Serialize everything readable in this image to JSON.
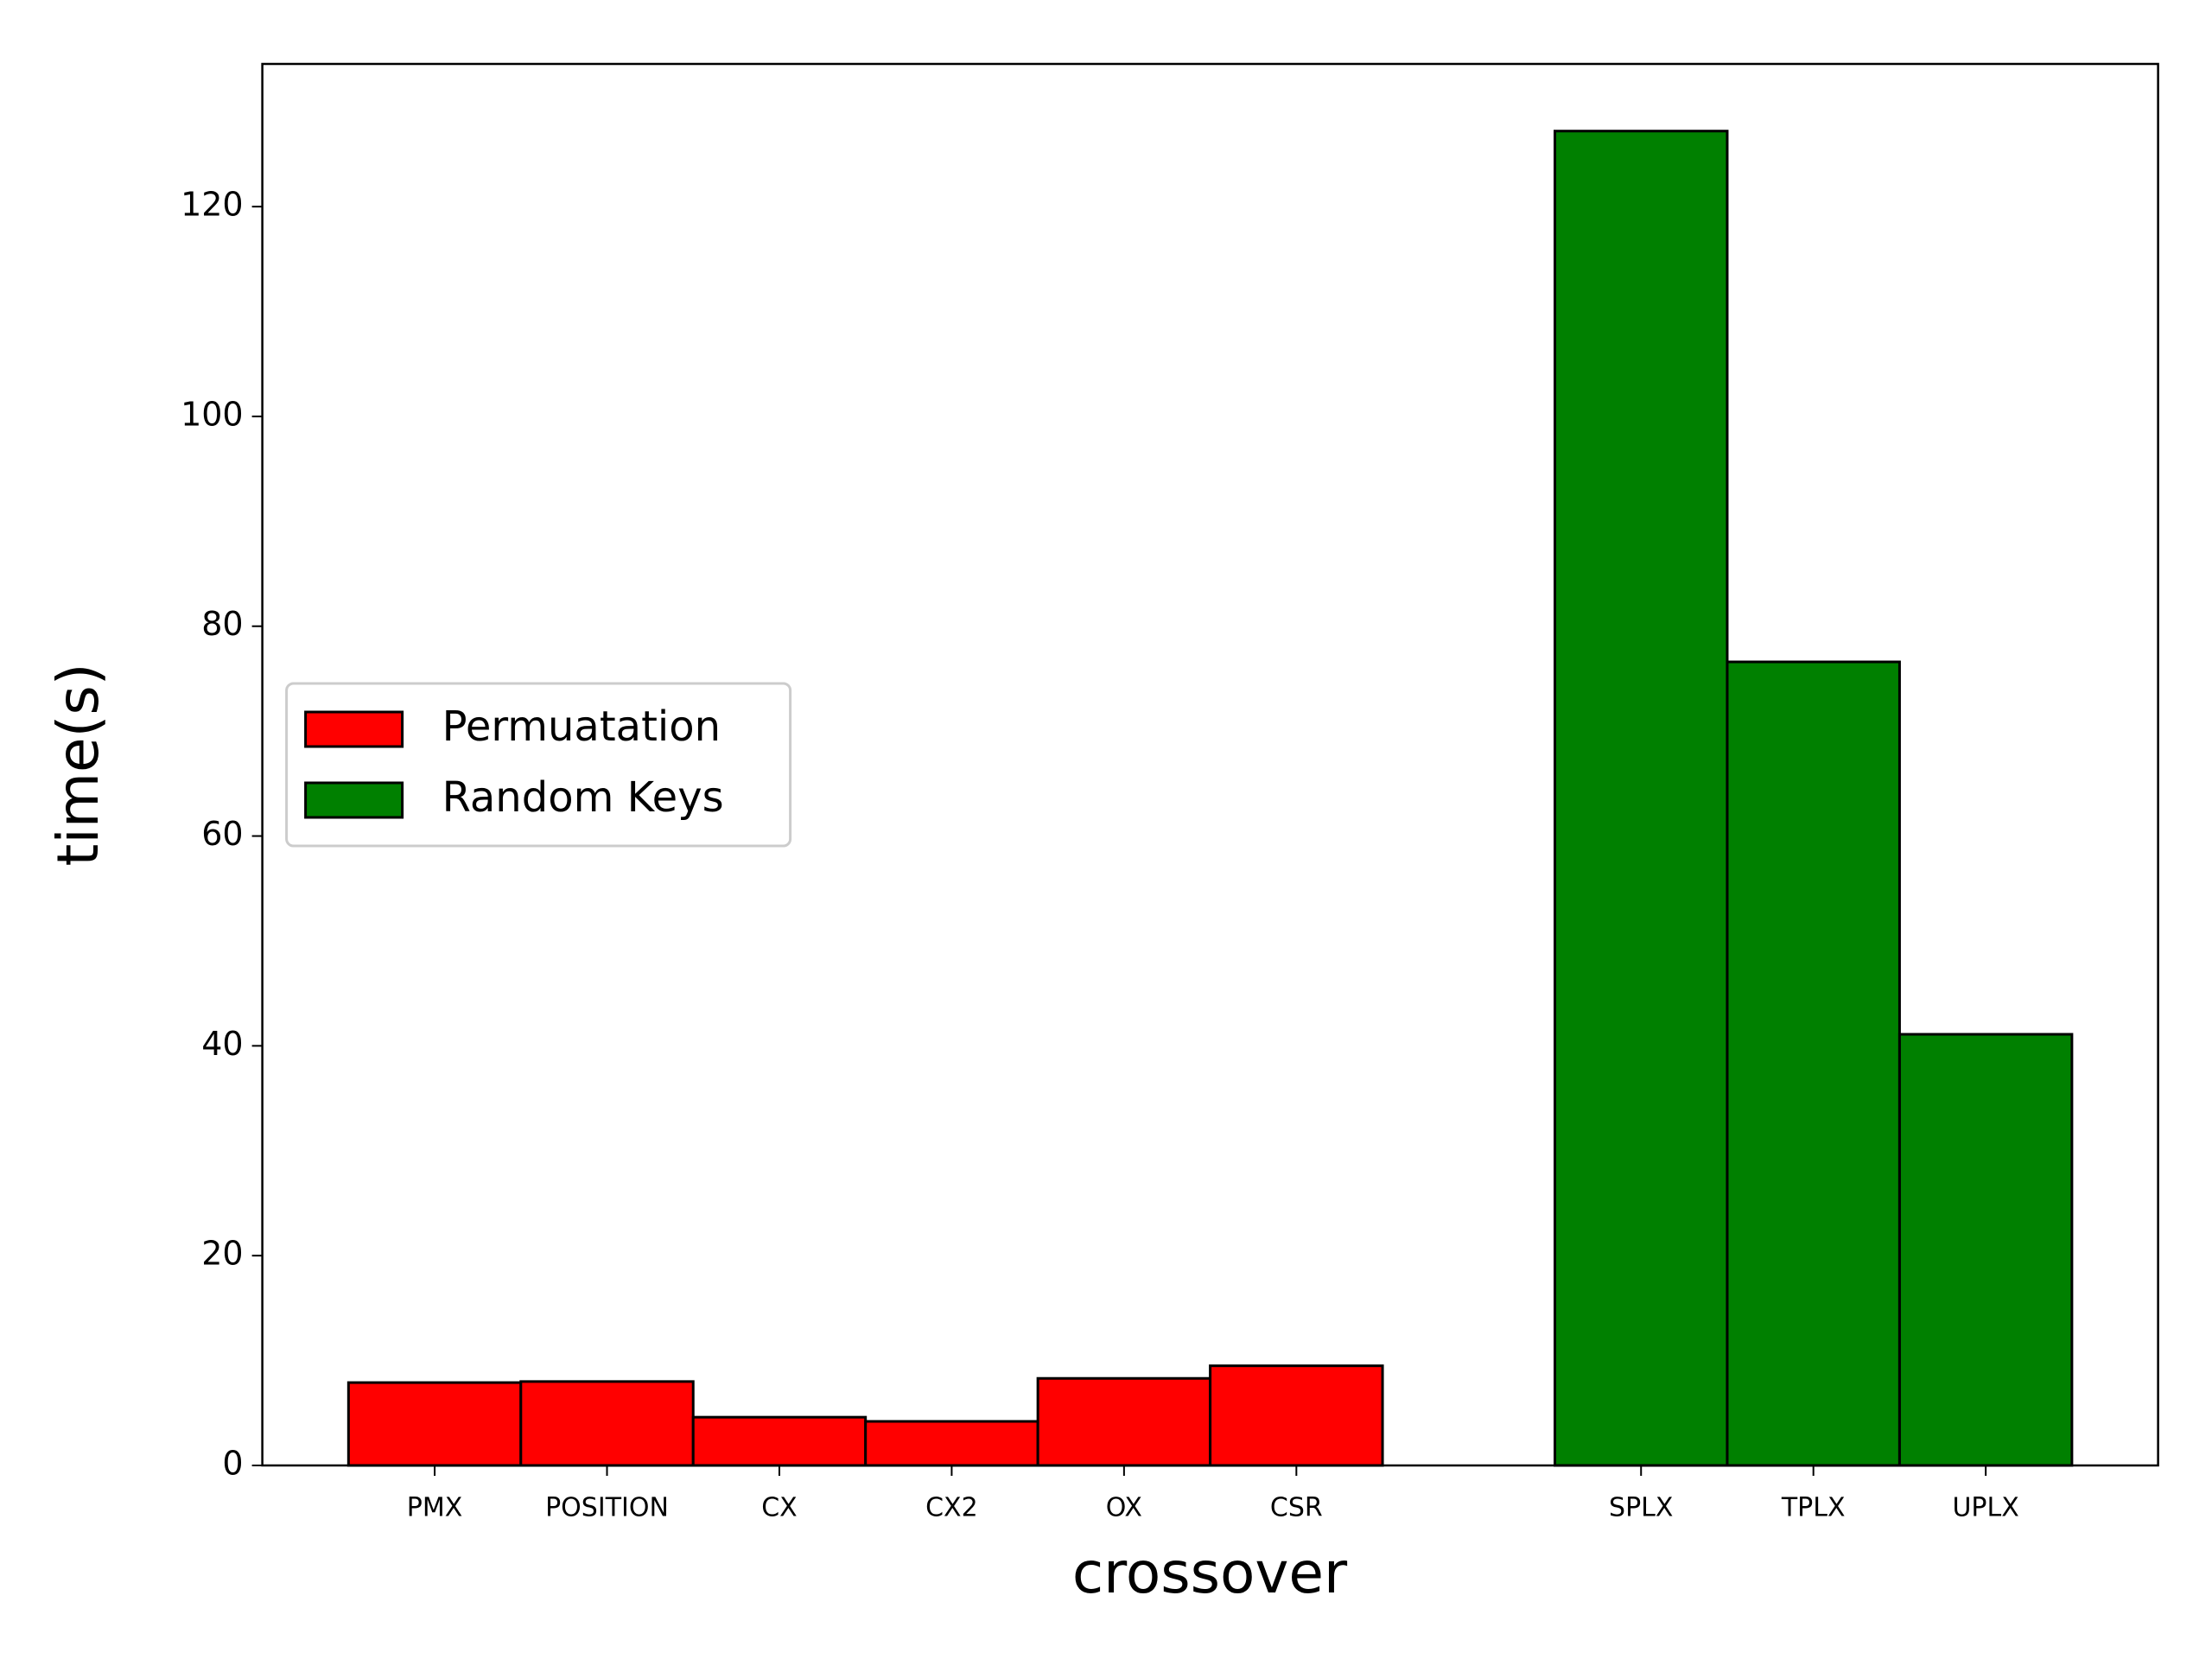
{
  "chart_data": {
    "type": "bar",
    "x_label": "crossover",
    "y_label": "time(s)",
    "categories": [
      "PMX",
      "POSITION",
      "CX",
      "CX2",
      "OX",
      "CSR",
      null,
      "SPLX",
      "TPLX",
      "UPLX"
    ],
    "series": [
      {
        "name": "Permuatation",
        "color": "#ff0000",
        "values": [
          7.9,
          8.0,
          4.6,
          4.2,
          8.3,
          9.5,
          null,
          null,
          null,
          null
        ]
      },
      {
        "name": "Random Keys",
        "color": "#008000",
        "values": [
          null,
          null,
          null,
          null,
          null,
          null,
          null,
          127.2,
          76.6,
          41.1
        ]
      }
    ],
    "ylim": [
      0,
      133.6
    ],
    "yticks": [
      0,
      20,
      40,
      60,
      80,
      100,
      120
    ],
    "legend": "center left"
  }
}
